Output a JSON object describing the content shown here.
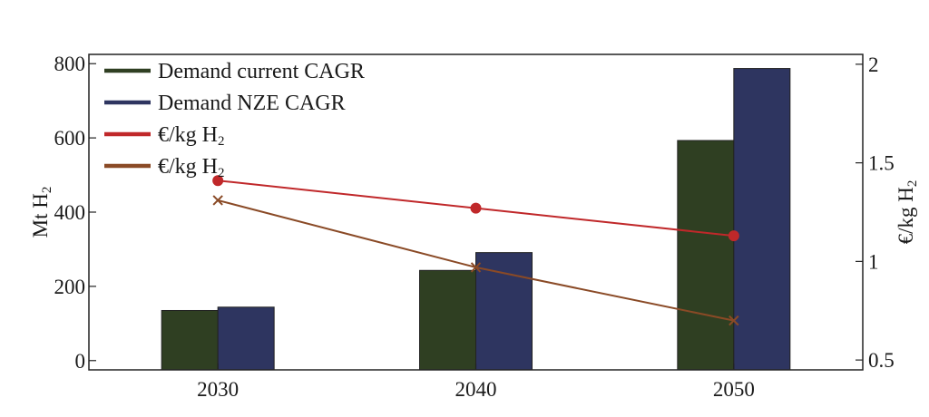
{
  "chart_data": {
    "type": "bar",
    "categories": [
      "2030",
      "2040",
      "2050"
    ],
    "series": [
      {
        "name": "Demand current CAGR",
        "kind": "bar",
        "axis": "left",
        "color": "#2f3f22",
        "values": [
          135,
          243,
          593
        ]
      },
      {
        "name": "Demand NZE CAGR",
        "kind": "bar",
        "axis": "left",
        "color": "#2e3560",
        "values": [
          144,
          291,
          787
        ]
      },
      {
        "name": "€/kg H2",
        "kind": "line",
        "marker": "circle",
        "axis": "right",
        "color": "#c0282a",
        "values": [
          1.41,
          1.27,
          1.13
        ]
      },
      {
        "name": "€/kg H2",
        "kind": "line",
        "marker": "x",
        "axis": "right",
        "color": "#8a4a26",
        "values": [
          1.31,
          0.97,
          0.7
        ]
      }
    ],
    "legend": [
      {
        "base": "Demand current CAGR",
        "sub": ""
      },
      {
        "base": "Demand NZE CAGR",
        "sub": ""
      },
      {
        "base": "€/kg H",
        "sub": "2"
      },
      {
        "base": "€/kg H",
        "sub": "2"
      }
    ],
    "left_axis": {
      "label_base": "Mt H",
      "label_sub": "2",
      "ylim": [
        -25,
        825
      ],
      "ticks": [
        0,
        200,
        400,
        600,
        800
      ]
    },
    "right_axis": {
      "label_base": "€/kg H",
      "label_sub": "2",
      "ylim": [
        0.45,
        2.05
      ],
      "ticks": [
        0.5,
        1,
        1.5,
        2
      ]
    },
    "legend_position": "top-left",
    "grid": false
  }
}
